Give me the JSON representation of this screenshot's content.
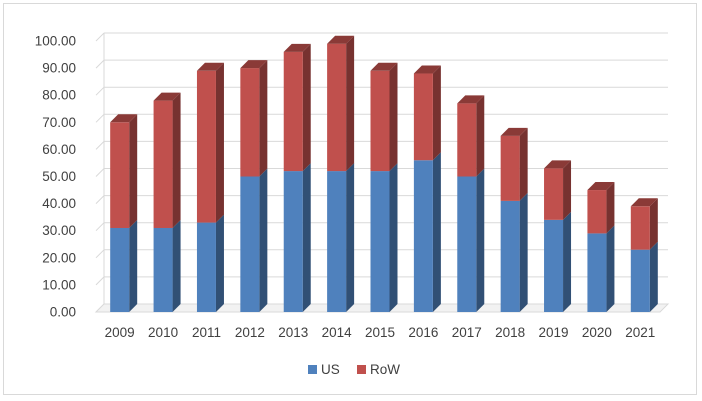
{
  "chart_data": {
    "type": "bar",
    "stacked": true,
    "style": "3d-column",
    "categories": [
      "2009",
      "2010",
      "2011",
      "2012",
      "2013",
      "2014",
      "2015",
      "2016",
      "2017",
      "2018",
      "2019",
      "2020",
      "2021"
    ],
    "series": [
      {
        "name": "US",
        "color": "#4f81bd",
        "values": [
          31,
          31,
          33,
          50,
          52,
          52,
          52,
          56,
          50,
          41,
          34,
          29,
          23
        ]
      },
      {
        "name": "RoW",
        "color": "#c0504d",
        "values": [
          39,
          47,
          56,
          40,
          44,
          47,
          37,
          32,
          27,
          24,
          19,
          16,
          16
        ]
      }
    ],
    "ylim": [
      0,
      100
    ],
    "yticks": [
      "0.00",
      "10.00",
      "20.00",
      "30.00",
      "40.00",
      "50.00",
      "60.00",
      "70.00",
      "80.00",
      "90.00",
      "100.00"
    ],
    "grid": true,
    "legend_position": "bottom"
  }
}
